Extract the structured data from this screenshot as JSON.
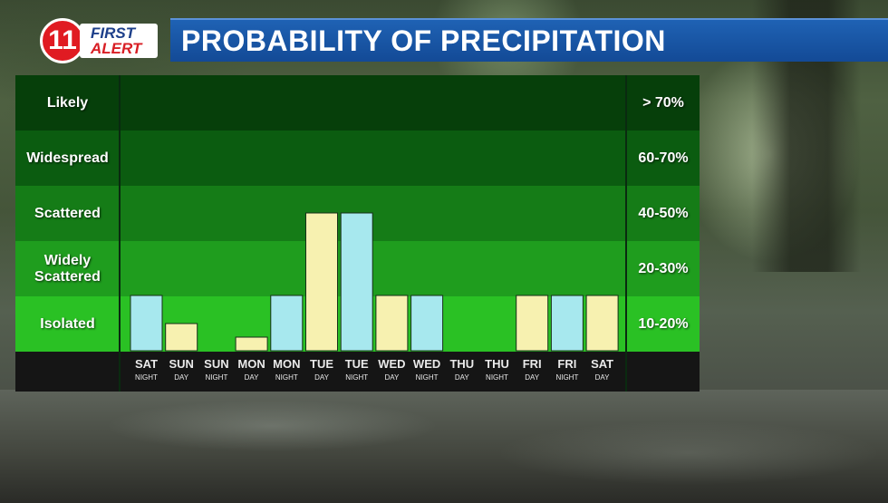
{
  "header": {
    "logo_number": "11",
    "logo_line1": "FIRST",
    "logo_line2": "ALERT",
    "title": "PROBABILITY OF PRECIPITATION"
  },
  "colors": {
    "day_bar": "#f7f1b0",
    "night_bar": "#a7e8ee",
    "title_bar": "#1a56a6",
    "logo_red": "#e01b22"
  },
  "bands": [
    {
      "label": "Likely",
      "range": "> 70%",
      "color": "#063f0a"
    },
    {
      "label": "Widespread",
      "range": "60-70%",
      "color": "#0b5c10"
    },
    {
      "label": "Scattered",
      "range": "40-50%",
      "color": "#157c17"
    },
    {
      "label": "Widely\nScattered",
      "range": "20-30%",
      "color": "#1f9d1e"
    },
    {
      "label": "Isolated",
      "range": "10-20%",
      "color": "#2ac124"
    }
  ],
  "chart_data": {
    "type": "bar",
    "title": "PROBABILITY OF PRECIPITATION",
    "categories": [
      {
        "day": "SAT",
        "period": "NIGHT"
      },
      {
        "day": "SUN",
        "period": "DAY"
      },
      {
        "day": "SUN",
        "period": "NIGHT"
      },
      {
        "day": "MON",
        "period": "DAY"
      },
      {
        "day": "MON",
        "period": "NIGHT"
      },
      {
        "day": "TUE",
        "period": "DAY"
      },
      {
        "day": "TUE",
        "period": "NIGHT"
      },
      {
        "day": "WED",
        "period": "DAY"
      },
      {
        "day": "WED",
        "period": "NIGHT"
      },
      {
        "day": "THU",
        "period": "DAY"
      },
      {
        "day": "THU",
        "period": "NIGHT"
      },
      {
        "day": "FRI",
        "period": "DAY"
      },
      {
        "day": "FRI",
        "period": "NIGHT"
      },
      {
        "day": "SAT",
        "period": "DAY"
      }
    ],
    "values": [
      20,
      10,
      0,
      5,
      20,
      50,
      50,
      20,
      20,
      0,
      0,
      20,
      20,
      20
    ],
    "y_unit": "%",
    "ylim": [
      0,
      80
    ],
    "y_band_labels": [
      "Isolated",
      "Widely Scattered",
      "Scattered",
      "Widespread",
      "Likely"
    ],
    "grid": false,
    "legend": "none"
  }
}
